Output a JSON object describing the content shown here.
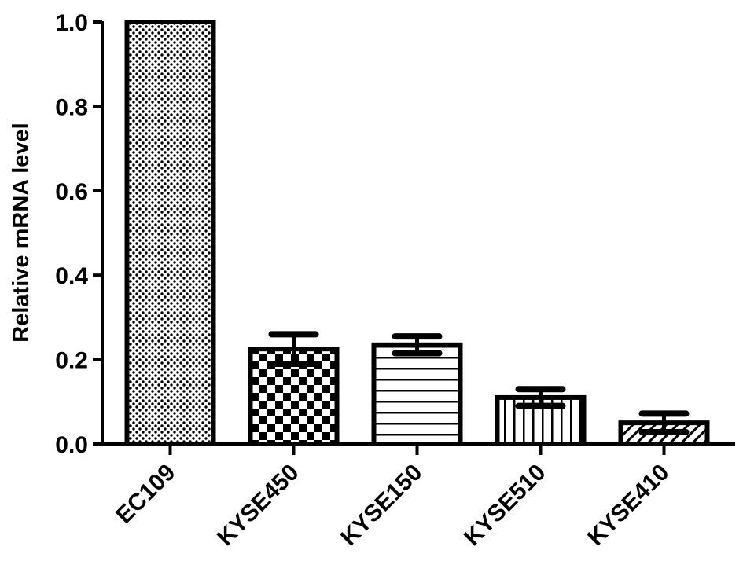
{
  "chart_data": {
    "type": "bar",
    "title": "",
    "xlabel": "",
    "ylabel": "Relative mRNA level",
    "ylim": [
      0,
      1.0
    ],
    "yticks": [
      "0.0",
      "0.2",
      "0.4",
      "0.6",
      "0.8",
      "1.0"
    ],
    "grid": false,
    "categories": [
      "EC109",
      "KYSE450",
      "KYSE150",
      "KYSE510",
      "KYSE410"
    ],
    "values": [
      1.0,
      0.225,
      0.235,
      0.11,
      0.05
    ],
    "error": [
      0,
      0.035,
      0.02,
      0.02,
      0.022
    ],
    "patterns": [
      "dots",
      "checker",
      "horizontal-lines",
      "vertical-lines",
      "diagonal-hatch"
    ],
    "colors": {
      "stroke": "#000000",
      "fill": "#ffffff"
    }
  }
}
